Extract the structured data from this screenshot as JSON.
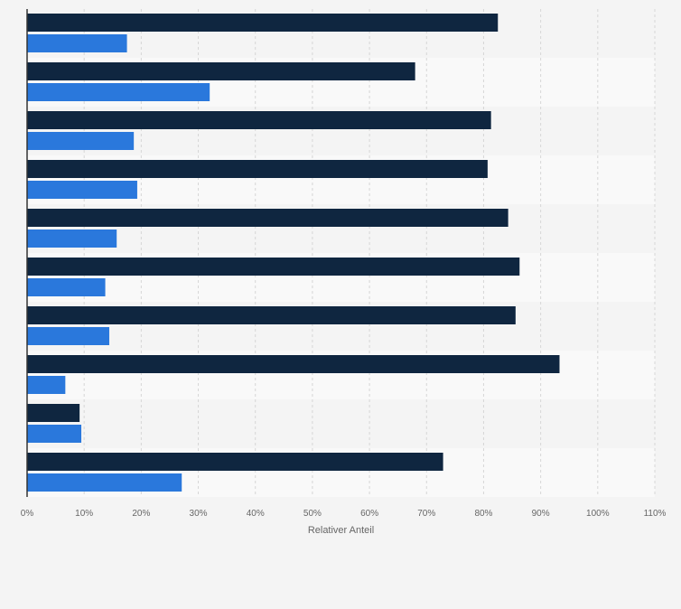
{
  "chart_data": {
    "type": "bar",
    "orientation": "horizontal",
    "categories": [
      "",
      "",
      "",
      "",
      "",
      "",
      "",
      "",
      "",
      ""
    ],
    "series": [
      {
        "values": [
          82.5,
          68.0,
          81.3,
          80.7,
          84.3,
          86.3,
          85.6,
          93.3,
          9.2,
          72.9
        ]
      },
      {
        "values": [
          17.5,
          32.0,
          18.7,
          19.3,
          15.7,
          13.7,
          14.4,
          6.7,
          9.5,
          27.1
        ]
      }
    ],
    "xlabel": "Relativer Anteil",
    "ylabel": "",
    "xlim": [
      0,
      110
    ],
    "xticks": [
      "0%",
      "10%",
      "20%",
      "30%",
      "40%",
      "50%",
      "60%",
      "70%",
      "80%",
      "90%",
      "100%",
      "110%"
    ],
    "grid": true,
    "legend": "none",
    "colors": {
      "series": [
        "#0f2640",
        "#2a78dc"
      ],
      "background": "#f4f4f4",
      "band_light": "#f9f9f9",
      "gridline": "#d6d6d6",
      "axis": "#333333",
      "tick_text": "#666666"
    }
  }
}
